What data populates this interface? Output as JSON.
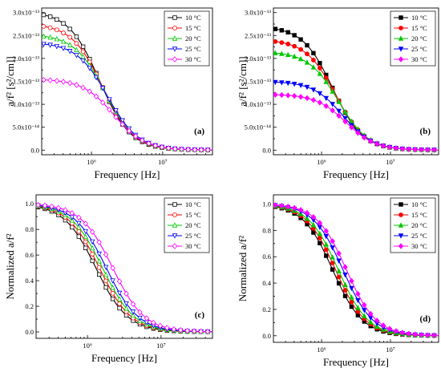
{
  "figure": {
    "xlabel": "Frequency [Hz]",
    "ylabel_top": "a/f² [s²/cm]]",
    "ylabel_bottom": "Normalized a/f²",
    "legend_labels": [
      "10 °C",
      "15 °C",
      "20 °C",
      "25 °C",
      "30 °C"
    ],
    "series_colors": [
      "#000000",
      "#ff0000",
      "#00c800",
      "#0000ff",
      "#ff00ff"
    ],
    "x_tick_labels": [
      "10⁶",
      "10⁷"
    ],
    "y_tick_labels_top_left": [
      "0.0",
      "5.0x10⁻¹⁴",
      "1.0x10⁻¹³",
      "1.5x10⁻¹³",
      "2.0x10⁻¹³",
      "2.5x10⁻¹³",
      "3.0x10⁻¹³"
    ],
    "y_tick_labels_top_right": [
      "0.0",
      "5.0x10⁻¹⁴",
      "1.0x10⁻¹³",
      "1.5x10⁻¹³",
      "2.0x10⁻¹³",
      "2.5x10⁻¹³",
      "3.0x10⁻¹³"
    ],
    "y_tick_labels_bottom": [
      "0.0",
      "0.2",
      "0.4",
      "0.6",
      "0.8",
      "1.0"
    ]
  },
  "chart_data": [
    {
      "panel": "(a)",
      "type": "line",
      "marker": "open",
      "xlabel": "Frequency [Hz]",
      "ylabel": "a/f² [s²/cm]]",
      "xscale": "log",
      "xlim": [
        200000,
        50000000
      ],
      "ylim": [
        -1e-14,
        3.1e-13
      ],
      "legend_position": "top-right",
      "series": [
        {
          "name": "10 °C",
          "color": "#000000",
          "plateau": 3.03e-13,
          "f_half": 1300000.0,
          "floor": 1e-16
        },
        {
          "name": "15 °C",
          "color": "#ff0000",
          "plateau": 2.76e-13,
          "f_half": 1430000.0,
          "floor": 1e-16
        },
        {
          "name": "20 °C",
          "color": "#00c800",
          "plateau": 2.53e-13,
          "f_half": 1550000.0,
          "floor": 1e-16
        },
        {
          "name": "25 °C",
          "color": "#0000ff",
          "plateau": 2.35e-13,
          "f_half": 1680000.0,
          "floor": 1e-16
        },
        {
          "name": "30 °C",
          "color": "#ff00ff",
          "plateau": 1.55e-13,
          "f_half": 2050000.0,
          "floor": 1e-16
        }
      ]
    },
    {
      "panel": "(b)",
      "type": "line",
      "marker": "filled",
      "xlabel": "Frequency [Hz]",
      "ylabel": "a/f² [s²/cm]]",
      "xscale": "log",
      "xlim": [
        200000,
        50000000
      ],
      "ylim": [
        -1e-14,
        3.1e-13
      ],
      "legend_position": "top-right",
      "series": [
        {
          "name": "10 °C",
          "color": "#000000",
          "plateau": 2.7e-13,
          "f_half": 1450000.0,
          "floor": 1e-16
        },
        {
          "name": "15 °C",
          "color": "#ff0000",
          "plateau": 2.41e-13,
          "f_half": 1600000.0,
          "floor": 1e-16
        },
        {
          "name": "20 °C",
          "color": "#00c800",
          "plateau": 2.15e-13,
          "f_half": 1750000.0,
          "floor": 1e-16
        },
        {
          "name": "25 °C",
          "color": "#0000ff",
          "plateau": 1.5e-13,
          "f_half": 2050000.0,
          "floor": 1e-16
        },
        {
          "name": "30 °C",
          "color": "#ff00ff",
          "plateau": 1.22e-13,
          "f_half": 2250000.0,
          "floor": 1e-16
        }
      ]
    },
    {
      "panel": "(c)",
      "type": "line",
      "marker": "open",
      "xlabel": "Frequency [Hz]",
      "ylabel": "Normalized a/f²",
      "xscale": "log",
      "xlim": [
        200000,
        50000000
      ],
      "ylim": [
        -0.05,
        1.07
      ],
      "legend_position": "top-right",
      "series": [
        {
          "name": "10 °C",
          "color": "#000000",
          "plateau": 1.0,
          "f_half": 1300000.0,
          "floor": 0.0
        },
        {
          "name": "15 °C",
          "color": "#ff0000",
          "plateau": 1.0,
          "f_half": 1450000.0,
          "floor": 0.0
        },
        {
          "name": "20 °C",
          "color": "#00c800",
          "plateau": 1.0,
          "f_half": 1600000.0,
          "floor": 0.0
        },
        {
          "name": "25 °C",
          "color": "#0000ff",
          "plateau": 1.0,
          "f_half": 1800000.0,
          "floor": 0.0
        },
        {
          "name": "30 °C",
          "color": "#ff00ff",
          "plateau": 1.0,
          "f_half": 2200000.0,
          "floor": 0.0
        }
      ]
    },
    {
      "panel": "(d)",
      "type": "line",
      "marker": "filled",
      "xlabel": "Frequency [Hz]",
      "ylabel": "Normalized a/f²",
      "xscale": "log",
      "xlim": [
        200000,
        50000000
      ],
      "ylim": [
        -0.05,
        1.07
      ],
      "legend_position": "top-right",
      "series": [
        {
          "name": "10 °C",
          "color": "#000000",
          "plateau": 1.0,
          "f_half": 1450000.0,
          "floor": 0.0
        },
        {
          "name": "15 °C",
          "color": "#ff0000",
          "plateau": 1.0,
          "f_half": 1600000.0,
          "floor": 0.0
        },
        {
          "name": "20 °C",
          "color": "#00c800",
          "plateau": 1.0,
          "f_half": 1750000.0,
          "floor": 0.0
        },
        {
          "name": "25 °C",
          "color": "#0000ff",
          "plateau": 1.0,
          "f_half": 2050000.0,
          "floor": 0.0
        },
        {
          "name": "30 °C",
          "color": "#ff00ff",
          "plateau": 1.0,
          "f_half": 2300000.0,
          "floor": 0.0
        }
      ]
    }
  ]
}
